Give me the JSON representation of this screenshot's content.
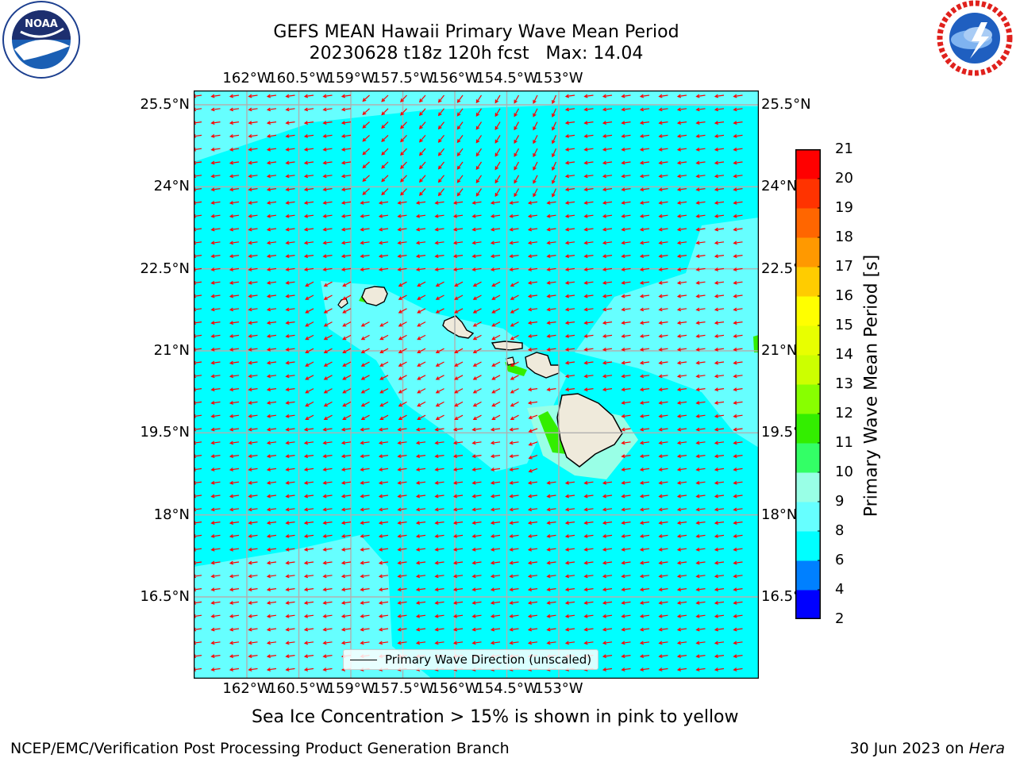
{
  "header": {
    "title_line1": "GEFS MEAN Hawaii Primary Wave Mean Period",
    "title_line2": "20230628 t18z 120h fcst   Max: 14.04"
  },
  "logos": {
    "left_logo_text": "NOAA",
    "left_logo_ring_text": "NATIONAL OCEANIC AND ATMOSPHERIC ADMINISTRATION · U.S. DEPARTMENT OF COMMERCE",
    "right_logo_ring_text": "NATIONAL WEATHER SERVICE"
  },
  "map": {
    "lon_ticks": [
      "162°W",
      "160.5°W",
      "159°W",
      "157.5°W",
      "156°W",
      "154.5°W",
      "153°W"
    ],
    "lat_ticks_left": [
      "25.5°N",
      "24°N",
      "22.5°N",
      "21°N",
      "19.5°N",
      "18°N",
      "16.5°N"
    ],
    "lat_ticks_right": [
      "25.5°N",
      "24°N",
      "22.5°N",
      "21°N",
      "19.5°N",
      "18°N",
      "16.5°N"
    ],
    "lon_values": [
      -162,
      -160.5,
      -159,
      -157.5,
      -156,
      -154.5,
      -153
    ],
    "lat_values": [
      25.5,
      24,
      22.5,
      21,
      19.5,
      18,
      16.5
    ],
    "ocean_color": "#00ffff",
    "light_band_color": "#66ffff",
    "land_color": "#efeadb",
    "arrow_color": "#ff0000",
    "legend_label": "Primary Wave Direction (unscaled)"
  },
  "colorbar": {
    "label": "Primary Wave Mean Period [s]",
    "ticks": [
      "2",
      "4",
      "6",
      "8",
      "9",
      "10",
      "11",
      "12",
      "13",
      "14",
      "15",
      "16",
      "17",
      "18",
      "19",
      "20",
      "21"
    ],
    "bin_colors": [
      "#0000ff",
      "#0080ff",
      "#00ffff",
      "#66ffff",
      "#99ffe6",
      "#33ff66",
      "#33ee00",
      "#88ff00",
      "#ccff00",
      "#e8ff00",
      "#ffff00",
      "#ffcc00",
      "#ff9900",
      "#ff6600",
      "#ff3300",
      "#ff0000"
    ]
  },
  "note": "Sea Ice Concentration > 15% is shown in pink to yellow",
  "footer": {
    "left": "NCEP/EMC/Verification Post Processing Product Generation Branch",
    "right_date": "30 Jun 2023 on ",
    "right_machine": "Hera"
  }
}
